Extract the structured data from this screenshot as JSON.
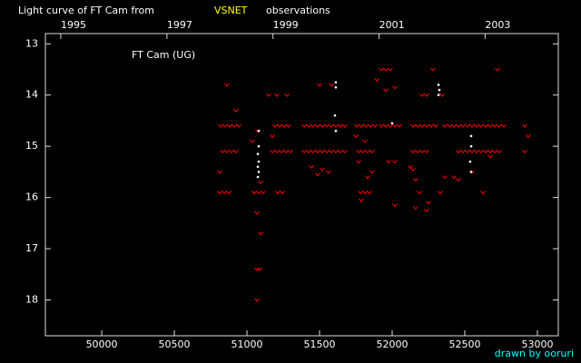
{
  "chart_data": {
    "type": "scatter",
    "title": "Light curve of FT Cam from",
    "title_highlight": "VSNET",
    "title_end": "observations",
    "annotation": "FT Cam (UG)",
    "credit": "drawn by ooruri",
    "xlim": [
      49612,
      53144
    ],
    "ylim": [
      18.7,
      12.8
    ],
    "xticks": [
      50000,
      50500,
      51000,
      51500,
      52000,
      52500,
      53000
    ],
    "yticks": [
      13,
      14,
      15,
      16,
      17,
      18
    ],
    "x2ticks": [
      {
        "value": 49718,
        "label": "1995"
      },
      {
        "value": 50449,
        "label": "1997"
      },
      {
        "value": 51179,
        "label": "1999"
      },
      {
        "value": 51910,
        "label": "2001"
      },
      {
        "value": 52640,
        "label": "2003"
      }
    ],
    "series": [
      {
        "color": "#ff0000",
        "marker": "v",
        "x": [
          50819,
          50850,
          50881,
          50912,
          50944,
          51194,
          51225,
          51256,
          51287,
          51394,
          51425,
          51456,
          51487,
          51519,
          51550,
          51581,
          51612,
          51644,
          51675,
          51756,
          51787,
          51819,
          51850,
          51881,
          51925,
          51956,
          51987,
          52019,
          52050,
          52144,
          52175,
          52206,
          52237,
          52269,
          52300,
          52362,
          52394,
          52425,
          52456,
          52487,
          52519,
          52550,
          52581,
          52612,
          52644,
          52675,
          52706,
          52737,
          52769,
          52912
        ],
        "values": [
          14.6,
          14.6,
          14.6,
          14.6,
          14.6,
          14.6,
          14.6,
          14.6,
          14.6,
          14.6,
          14.6,
          14.6,
          14.6,
          14.6,
          14.6,
          14.6,
          14.6,
          14.6,
          14.6,
          14.6,
          14.6,
          14.6,
          14.6,
          14.6,
          14.6,
          14.6,
          14.6,
          14.6,
          14.6,
          14.6,
          14.6,
          14.6,
          14.6,
          14.6,
          14.6,
          14.6,
          14.6,
          14.6,
          14.6,
          14.6,
          14.6,
          14.6,
          14.6,
          14.6,
          14.6,
          14.6,
          14.6,
          14.6,
          14.6,
          14.6
        ]
      },
      {
        "color": "#ff0000",
        "marker": "v",
        "x": [
          50831,
          50862,
          50894,
          50925,
          51175,
          51206,
          51237,
          51269,
          51300,
          51394,
          51425,
          51456,
          51487,
          51519,
          51550,
          51581,
          51612,
          51644,
          51675,
          51769,
          51800,
          51831,
          51862,
          52144,
          52175,
          52206,
          52237,
          52456,
          52487,
          52519,
          52550,
          52581,
          52612,
          52644,
          52675,
          52706,
          52737,
          52912
        ],
        "values": [
          15.1,
          15.1,
          15.1,
          15.1,
          15.1,
          15.1,
          15.1,
          15.1,
          15.1,
          15.1,
          15.1,
          15.1,
          15.1,
          15.1,
          15.1,
          15.1,
          15.1,
          15.1,
          15.1,
          15.1,
          15.1,
          15.1,
          15.1,
          15.1,
          15.1,
          15.1,
          15.1,
          15.1,
          15.1,
          15.1,
          15.1,
          15.1,
          15.1,
          15.1,
          15.1,
          15.1,
          15.1,
          15.1
        ]
      },
      {
        "color": "#ff0000",
        "marker": "v",
        "x": [
          50812,
          50844,
          50875,
          51050,
          51081,
          51112,
          51212,
          51244,
          51781,
          51812,
          51844
        ],
        "values": [
          15.9,
          15.9,
          15.9,
          15.9,
          15.9,
          15.9,
          15.9,
          15.9,
          15.9,
          15.9,
          15.9
        ]
      },
      {
        "color": "#ff0000",
        "marker": "v",
        "x": [
          50862,
          51150,
          51206,
          51275,
          51500,
          51581,
          51925,
          51956,
          51987,
          51894,
          51956,
          52019,
          52281,
          52206,
          52237,
          52344,
          52725,
          50925,
          51075,
          51175,
          51750,
          51812,
          51975,
          52019,
          52144,
          52162,
          52125,
          52187,
          52250,
          52237,
          52162,
          52362,
          52425,
          52331,
          52456,
          52625,
          52550,
          52675,
          51519,
          51487,
          51444,
          51562,
          51769,
          51787,
          51831,
          51862,
          52019,
          51069,
          51094,
          51069,
          51087,
          51069,
          51037,
          50812,
          52937,
          51094
        ],
        "values": [
          13.8,
          14.0,
          14.0,
          14.0,
          13.8,
          13.8,
          13.5,
          13.5,
          13.5,
          13.7,
          13.9,
          13.85,
          13.5,
          14.0,
          14.0,
          14.0,
          13.5,
          14.3,
          14.7,
          14.8,
          14.8,
          14.9,
          15.3,
          15.3,
          15.45,
          15.65,
          15.4,
          15.9,
          16.1,
          16.25,
          16.2,
          15.6,
          15.6,
          15.9,
          15.65,
          15.9,
          15.5,
          15.2,
          15.45,
          15.55,
          15.4,
          15.5,
          15.3,
          16.05,
          15.6,
          15.5,
          16.15,
          16.3,
          16.7,
          17.4,
          17.4,
          18.0,
          14.9,
          15.5,
          14.8,
          15.7
        ]
      },
      {
        "color": "#ffffff",
        "marker": "dot",
        "x": [
          51081,
          51081,
          51075,
          51081,
          51075,
          51081,
          51075,
          51612,
          51612,
          51606,
          51612,
          52319,
          52325,
          52319,
          52544,
          52544,
          52537,
          52544,
          52000
        ],
        "values": [
          14.7,
          15.0,
          15.15,
          15.3,
          15.4,
          15.5,
          15.6,
          13.75,
          13.85,
          14.4,
          14.7,
          13.8,
          13.9,
          14.0,
          14.8,
          15.0,
          15.3,
          15.5,
          14.55
        ]
      }
    ]
  }
}
